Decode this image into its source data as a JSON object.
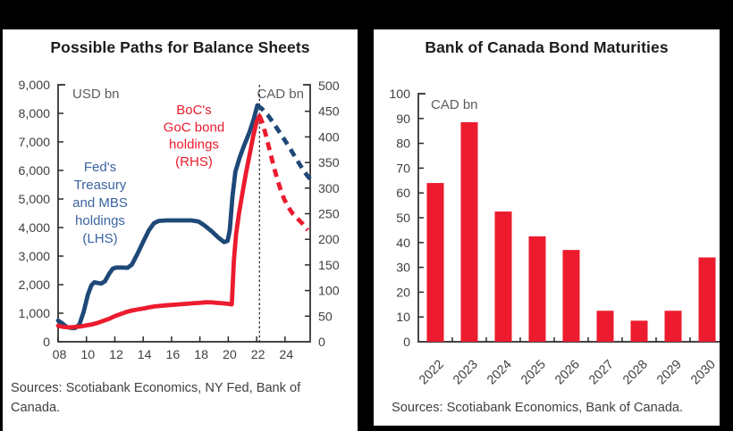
{
  "page_background": "#000000",
  "chart_data": [
    {
      "type": "line",
      "title": "Possible Paths for Balance Sheets",
      "sources": "Sources: Scotiabank Economics, NY Fed, Bank of Canada.",
      "x_range": [
        2008,
        2025.8
      ],
      "x_tick_years": [
        2008,
        2010,
        2012,
        2014,
        2016,
        2018,
        2020,
        2022,
        2024
      ],
      "x_tick_labels": [
        "08",
        "10",
        "12",
        "14",
        "16",
        "18",
        "20",
        "22",
        "24"
      ],
      "left_axis": {
        "label": "USD bn",
        "min": 0,
        "max": 9000,
        "step": 1000
      },
      "right_axis": {
        "label": "CAD bn",
        "min": 0,
        "max": 500,
        "step": 50
      },
      "projection_divider_year": 2022.2,
      "grid": false,
      "series": [
        {
          "name": "Fed's Treasury and MBS holdings (LHS)",
          "axis": "left",
          "color": "#1E4878",
          "annotation": {
            "lines": [
              "Fed's",
              "Treasury",
              "and MBS",
              "holdings",
              "(LHS)"
            ],
            "color": "#3B63A0"
          },
          "solid": [
            [
              2008,
              740
            ],
            [
              2008.3,
              640
            ],
            [
              2008.6,
              520
            ],
            [
              2008.9,
              485
            ],
            [
              2009.2,
              480
            ],
            [
              2009.5,
              600
            ],
            [
              2009.8,
              1050
            ],
            [
              2010.1,
              1650
            ],
            [
              2010.35,
              1980
            ],
            [
              2010.55,
              2080
            ],
            [
              2010.8,
              2060
            ],
            [
              2011.05,
              2040
            ],
            [
              2011.3,
              2120
            ],
            [
              2011.6,
              2380
            ],
            [
              2011.85,
              2560
            ],
            [
              2012.1,
              2600
            ],
            [
              2012.5,
              2600
            ],
            [
              2012.9,
              2590
            ],
            [
              2013.2,
              2700
            ],
            [
              2013.6,
              3080
            ],
            [
              2014,
              3500
            ],
            [
              2014.4,
              3900
            ],
            [
              2014.75,
              4150
            ],
            [
              2015.1,
              4230
            ],
            [
              2015.6,
              4250
            ],
            [
              2016.2,
              4250
            ],
            [
              2016.8,
              4250
            ],
            [
              2017.4,
              4250
            ],
            [
              2017.9,
              4210
            ],
            [
              2018.3,
              4080
            ],
            [
              2018.8,
              3880
            ],
            [
              2019.3,
              3650
            ],
            [
              2019.7,
              3490
            ],
            [
              2019.95,
              3530
            ],
            [
              2020.1,
              3900
            ],
            [
              2020.3,
              5100
            ],
            [
              2020.5,
              5950
            ],
            [
              2020.8,
              6450
            ],
            [
              2021.1,
              6850
            ],
            [
              2021.5,
              7350
            ],
            [
              2021.8,
              7800
            ],
            [
              2022.05,
              8280
            ]
          ],
          "projection": [
            [
              2022.05,
              8280
            ],
            [
              2022.4,
              8150
            ],
            [
              2022.8,
              7930
            ],
            [
              2023.2,
              7650
            ],
            [
              2023.6,
              7350
            ],
            [
              2024,
              7050
            ],
            [
              2024.4,
              6730
            ],
            [
              2024.8,
              6400
            ],
            [
              2025.2,
              6080
            ],
            [
              2025.55,
              5830
            ],
            [
              2025.8,
              5680
            ]
          ]
        },
        {
          "name": "BoC's GoC bond holdings (RHS)",
          "axis": "right",
          "color": "#EC1B2E",
          "annotation": {
            "lines": [
              "BoC's",
              "GoC bond",
              "holdings",
              "(RHS)"
            ],
            "color": "#EC1B2E"
          },
          "solid": [
            [
              2008,
              31
            ],
            [
              2008.4,
              29
            ],
            [
              2008.8,
              28
            ],
            [
              2009.2,
              29
            ],
            [
              2009.6,
              30
            ],
            [
              2010,
              32
            ],
            [
              2010.4,
              34
            ],
            [
              2010.8,
              37
            ],
            [
              2011.2,
              41
            ],
            [
              2011.6,
              45
            ],
            [
              2012,
              50
            ],
            [
              2012.4,
              54
            ],
            [
              2012.8,
              58
            ],
            [
              2013.2,
              61
            ],
            [
              2013.6,
              63
            ],
            [
              2014,
              65
            ],
            [
              2014.4,
              67
            ],
            [
              2014.8,
              69
            ],
            [
              2015.2,
              70
            ],
            [
              2015.6,
              71
            ],
            [
              2016,
              72
            ],
            [
              2016.5,
              73
            ],
            [
              2017,
              74
            ],
            [
              2017.5,
              75
            ],
            [
              2018,
              76
            ],
            [
              2018.4,
              77
            ],
            [
              2018.8,
              77
            ],
            [
              2019.2,
              76
            ],
            [
              2019.6,
              75
            ],
            [
              2020,
              74
            ],
            [
              2020.25,
              73
            ],
            [
              2020.4,
              160
            ],
            [
              2020.55,
              210
            ],
            [
              2020.75,
              250
            ],
            [
              2021,
              290
            ],
            [
              2021.25,
              330
            ],
            [
              2021.5,
              365
            ],
            [
              2021.75,
              400
            ],
            [
              2022,
              430
            ],
            [
              2022.2,
              441
            ]
          ],
          "projection": [
            [
              2022.2,
              441
            ],
            [
              2022.45,
              425
            ],
            [
              2022.7,
              398
            ],
            [
              2022.95,
              370
            ],
            [
              2023.2,
              343
            ],
            [
              2023.45,
              318
            ],
            [
              2023.7,
              296
            ],
            [
              2023.95,
              278
            ],
            [
              2024.25,
              262
            ],
            [
              2024.55,
              250
            ],
            [
              2024.9,
              240
            ],
            [
              2025.25,
              230
            ],
            [
              2025.6,
              218
            ]
          ]
        }
      ]
    },
    {
      "type": "bar",
      "title": "Bank of Canada Bond Maturities",
      "sources": "Sources: Scotiabank Economics, Bank of Canada.",
      "unit_label": "CAD bn",
      "categories": [
        "2022",
        "2023",
        "2024",
        "2025",
        "2026",
        "2027",
        "2028",
        "2029",
        "2030"
      ],
      "values": [
        64,
        88.5,
        52.5,
        42.5,
        37,
        12.5,
        8.5,
        12.5,
        34
      ],
      "ylim": [
        0,
        100
      ],
      "y_step": 10,
      "bar_color": "#EC1B2E",
      "grid": false,
      "legend": "none"
    }
  ]
}
